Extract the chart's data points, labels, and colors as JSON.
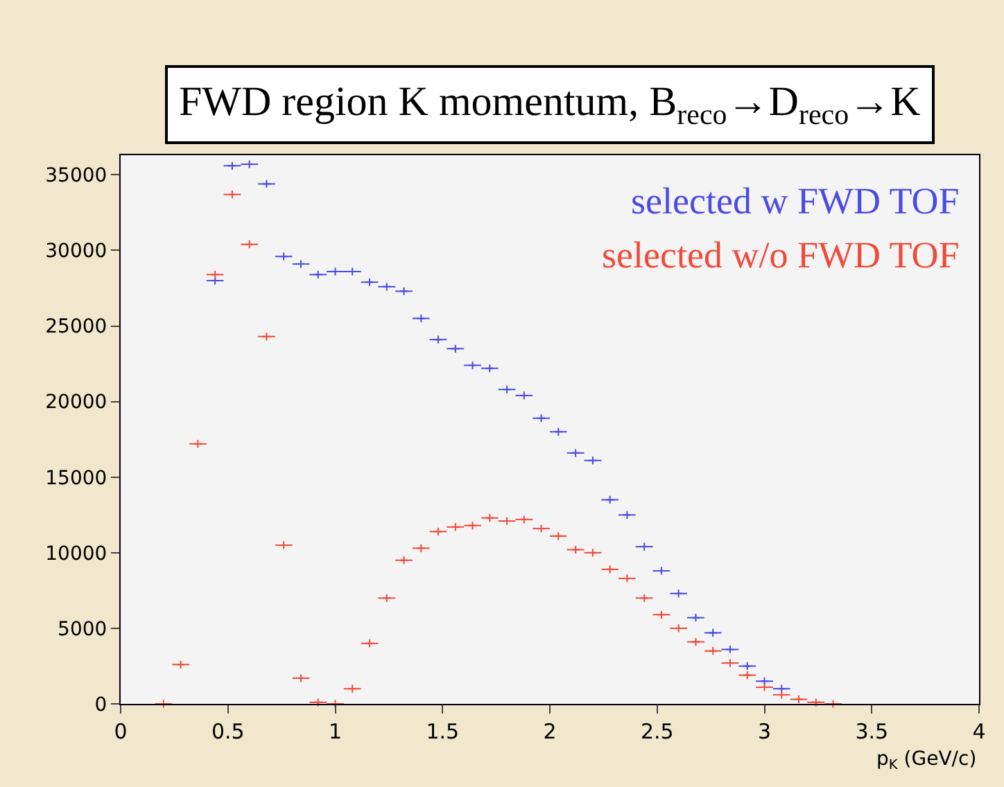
{
  "chart_data": {
    "type": "scatter",
    "title": "FWD region K momentum, B$_{reco}$→D$_{reco}$→K",
    "xlabel": "p$_{K}$ (GeV/c)",
    "x": [
      0.2,
      0.28,
      0.36,
      0.44,
      0.52,
      0.6,
      0.68,
      0.76,
      0.84,
      0.92,
      1.0,
      1.08,
      1.16,
      1.24,
      1.32,
      1.4,
      1.48,
      1.56,
      1.64,
      1.72,
      1.8,
      1.88,
      1.96,
      2.04,
      2.12,
      2.2,
      2.28,
      2.36,
      2.44,
      2.52,
      2.6,
      2.68,
      2.76,
      2.84,
      2.92,
      3.0,
      3.08,
      3.16,
      3.24,
      3.32
    ],
    "series": [
      {
        "name": "selected w FWD TOF",
        "color": "#4a4ae6",
        "values": [
          null,
          null,
          null,
          28000,
          35600,
          35700,
          34400,
          29600,
          29100,
          28400,
          28600,
          28600,
          27900,
          27600,
          27300,
          25500,
          24100,
          23500,
          22400,
          22200,
          20800,
          20400,
          18900,
          18000,
          16600,
          16100,
          13500,
          12500,
          10400,
          8800,
          7300,
          5700,
          4700,
          3600,
          2500,
          1500,
          1000,
          null,
          null,
          null
        ],
        "xerrors": [
          null,
          null,
          null,
          0.04,
          0.04,
          0.04,
          0.04,
          0.04,
          0.04,
          0.04,
          0.04,
          0.04,
          0.04,
          0.04,
          0.04,
          0.04,
          0.04,
          0.04,
          0.04,
          0.04,
          0.04,
          0.04,
          0.04,
          0.04,
          0.04,
          0.04,
          0.04,
          0.04,
          0.04,
          0.04,
          0.04,
          0.04,
          0.04,
          0.04,
          0.04,
          0.04,
          0.04,
          null,
          null,
          null
        ]
      },
      {
        "name": "selected w/o FWD TOF",
        "color": "#f04a3a",
        "values": [
          0,
          2600,
          17200,
          28400,
          33700,
          30400,
          24300,
          10500,
          1700,
          100,
          0,
          1000,
          4000,
          7000,
          9500,
          10300,
          11400,
          11700,
          11800,
          12300,
          12100,
          12200,
          11600,
          11100,
          10200,
          10000,
          8900,
          8300,
          7000,
          5900,
          5000,
          4100,
          3500,
          2700,
          1900,
          1100,
          600,
          300,
          100,
          0
        ],
        "xerrors": [
          0.04,
          0.04,
          0.04,
          0.04,
          0.04,
          0.04,
          0.04,
          0.04,
          0.04,
          0.04,
          0.04,
          0.04,
          0.04,
          0.04,
          0.04,
          0.04,
          0.04,
          0.04,
          0.04,
          0.04,
          0.04,
          0.04,
          0.04,
          0.04,
          0.04,
          0.04,
          0.04,
          0.04,
          0.04,
          0.04,
          0.04,
          0.04,
          0.04,
          0.04,
          0.04,
          0.04,
          0.04,
          0.04,
          0.04,
          0.04
        ]
      }
    ],
    "xlim": [
      0,
      4
    ],
    "xticks": [
      0,
      0.5,
      1,
      1.5,
      2,
      2.5,
      3,
      3.5,
      4
    ],
    "ylim": [
      0,
      36300
    ],
    "yticks": [
      0,
      5000,
      10000,
      15000,
      20000,
      25000,
      30000,
      35000
    ],
    "grid": false,
    "legend": "top right",
    "marker": "cross"
  }
}
